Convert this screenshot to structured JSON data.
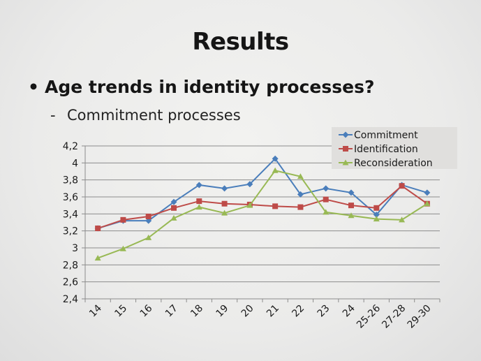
{
  "slide": {
    "title": "Results",
    "bullet": "Age trends in identity processes?",
    "bullet_marker": "•",
    "sub_bullet": "Commitment processes",
    "sub_marker": "-"
  },
  "chart_data": {
    "type": "line",
    "categories": [
      "14",
      "15",
      "16",
      "17",
      "18",
      "19",
      "20",
      "21",
      "22",
      "23",
      "24",
      "25-26",
      "27-28",
      "29-30"
    ],
    "ylim": [
      2.4,
      4.2
    ],
    "yticks": [
      "4,2",
      "4",
      "3,8",
      "3,6",
      "3,4",
      "3,2",
      "3",
      "2,8",
      "2,6",
      "2,4"
    ],
    "ytick_values": [
      4.2,
      4.0,
      3.8,
      3.6,
      3.4,
      3.2,
      3.0,
      2.8,
      2.6,
      2.4
    ],
    "grid": true,
    "legend_position": "top-right",
    "series": [
      {
        "name": "Commitment",
        "color": "#4a7ebb",
        "marker": "diamond",
        "values": [
          3.23,
          3.32,
          3.32,
          3.54,
          3.74,
          3.7,
          3.75,
          4.05,
          3.63,
          3.7,
          3.65,
          3.39,
          3.74,
          3.65
        ]
      },
      {
        "name": "Identification",
        "color": "#be4b48",
        "marker": "square",
        "values": [
          3.23,
          3.33,
          3.37,
          3.47,
          3.55,
          3.52,
          3.51,
          3.49,
          3.48,
          3.57,
          3.5,
          3.47,
          3.73,
          3.52
        ]
      },
      {
        "name": "Reconsideration",
        "color": "#98b954",
        "marker": "triangle",
        "values": [
          2.88,
          2.99,
          3.12,
          3.35,
          3.48,
          3.41,
          3.5,
          3.91,
          3.84,
          3.42,
          3.38,
          3.34,
          3.33,
          3.52
        ]
      }
    ]
  }
}
